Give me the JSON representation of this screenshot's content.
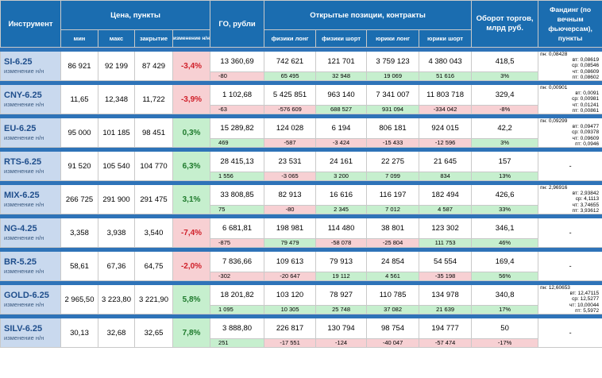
{
  "headers": {
    "instrument": "Инструмент",
    "price": "Цена, пункты",
    "go": "ГО, рубли",
    "oi": "Открытые позиции, контракты",
    "turnover": "Оборот торгов, млрд руб.",
    "funding": "Фандинг (по вечным фьючерсам), пункты",
    "min": "мин",
    "max": "макс",
    "close": "закрытие",
    "change": "изменение н/н",
    "phys_long": "физики лонг",
    "phys_short": "физики шорт",
    "jur_long": "юрики лонг",
    "jur_short": "юрики шорт"
  },
  "rows": [
    {
      "name": "SI-6.25",
      "sub": "изменение н/н",
      "min": "86 921",
      "max": "92 199",
      "close": "87 429",
      "change": "-3,4%",
      "go": "13 360,69",
      "pl": "742 621",
      "ps": "121 701",
      "jl": "3 759 123",
      "js": "4 380 043",
      "turnover": "418,5",
      "d_go": "-80",
      "d_pl": "65 495",
      "d_ps": "32 948",
      "d_jl": "19 069",
      "d_js": "51 616",
      "d_turnover": "3%",
      "funding": [
        "пн: 0,08428",
        "вт: 0,08619",
        "ср: 0,08546",
        "чт: 0,08609",
        "пт: 0,08602"
      ]
    },
    {
      "name": "CNY-6.25",
      "sub": "изменение н/н",
      "min": "11,65",
      "max": "12,348",
      "close": "11,722",
      "change": "-3,9%",
      "go": "1 102,68",
      "pl": "5 425 851",
      "ps": "963 140",
      "jl": "7 341 007",
      "js": "11 803 718",
      "turnover": "329,4",
      "d_go": "-63",
      "d_pl": "-576 609",
      "d_ps": "688 527",
      "d_jl": "931 094",
      "d_js": "-334 042",
      "d_turnover": "-8%",
      "funding": [
        "пн: 0,00901",
        "вт: 0,0091",
        "ср: 0,00981",
        "чт: 0,01241",
        "пт: 0,00861"
      ]
    },
    {
      "name": "EU-6.25",
      "sub": "изменение н/н",
      "min": "95 000",
      "max": "101 185",
      "close": "98 451",
      "change": "0,3%",
      "go": "15 289,82",
      "pl": "124 028",
      "ps": "6 194",
      "jl": "806 181",
      "js": "924 015",
      "turnover": "42,2",
      "d_go": "469",
      "d_pl": "-587",
      "d_ps": "-3 424",
      "d_jl": "-15 433",
      "d_js": "-12 596",
      "d_turnover": "3%",
      "funding": [
        "пн: 0,09299",
        "вт: 0,09477",
        "ср: 0,09378",
        "чт: 0,09609",
        "пт: 0,0946"
      ]
    },
    {
      "name": "RTS-6.25",
      "sub": "изменение н/н",
      "min": "91 520",
      "max": "105 540",
      "close": "104 770",
      "change": "6,3%",
      "go": "28 415,13",
      "pl": "23 531",
      "ps": "24 161",
      "jl": "22 275",
      "js": "21 645",
      "turnover": "157",
      "d_go": "1 556",
      "d_pl": "-3 065",
      "d_ps": "3 200",
      "d_jl": "7 099",
      "d_js": "834",
      "d_turnover": "13%",
      "funding": "-"
    },
    {
      "name": "MIX-6.25",
      "sub": "изменение н/н",
      "min": "266 725",
      "max": "291 900",
      "close": "291 475",
      "change": "3,1%",
      "go": "33 808,85",
      "pl": "82 913",
      "ps": "16 616",
      "jl": "116 197",
      "js": "182 494",
      "turnover": "426,6",
      "d_go": "75",
      "d_pl": "-80",
      "d_ps": "2 345",
      "d_jl": "7 012",
      "d_js": "4 587",
      "d_turnover": "33%",
      "funding": [
        "пн: 2,96916",
        "вт: 2,93842",
        "ср: 4,1113",
        "чт: 3,74655",
        "пт: 3,93612"
      ]
    },
    {
      "name": "NG-4.25",
      "sub": "изменение н/н",
      "min": "3,358",
      "max": "3,938",
      "close": "3,540",
      "change": "-7,4%",
      "go": "6 681,81",
      "pl": "198 981",
      "ps": "114 480",
      "jl": "38 801",
      "js": "123 302",
      "turnover": "346,1",
      "d_go": "-875",
      "d_pl": "79 479",
      "d_ps": "-58 078",
      "d_jl": "-25 804",
      "d_js": "111 753",
      "d_turnover": "46%",
      "funding": "-"
    },
    {
      "name": "BR-5.25",
      "sub": "изменение н/н",
      "min": "58,61",
      "max": "67,36",
      "close": "64,75",
      "change": "-2,0%",
      "go": "7 836,66",
      "pl": "109 613",
      "ps": "79 913",
      "jl": "24 854",
      "js": "54 554",
      "turnover": "169,4",
      "d_go": "-302",
      "d_pl": "-20 647",
      "d_ps": "19 112",
      "d_jl": "4 561",
      "d_js": "-35 198",
      "d_turnover": "56%",
      "funding": "-"
    },
    {
      "name": "GOLD-6.25",
      "sub": "изменение н/н",
      "min": "2 965,50",
      "max": "3 223,80",
      "close": "3 221,90",
      "change": "5,8%",
      "go": "18 201,82",
      "pl": "103 120",
      "ps": "78 927",
      "jl": "110 785",
      "js": "134 978",
      "turnover": "340,8",
      "d_go": "1 095",
      "d_pl": "10 305",
      "d_ps": "25 748",
      "d_jl": "37 082",
      "d_js": "21 639",
      "d_turnover": "17%",
      "funding": [
        "пн: 12,60653",
        "вт: 12,47115",
        "ср: 12,5277",
        "чт: 10,00044",
        "пт: 5,5972"
      ]
    },
    {
      "name": "SILV-6.25",
      "sub": "изменение н/н",
      "min": "30,13",
      "max": "32,68",
      "close": "32,65",
      "change": "7,8%",
      "go": "3 888,80",
      "pl": "226 817",
      "ps": "130 794",
      "jl": "98 754",
      "js": "194 777",
      "turnover": "50",
      "d_go": "251",
      "d_pl": "-17 551",
      "d_ps": "-124",
      "d_jl": "-40 047",
      "d_js": "-57 474",
      "d_turnover": "-17%",
      "funding": "-"
    }
  ]
}
